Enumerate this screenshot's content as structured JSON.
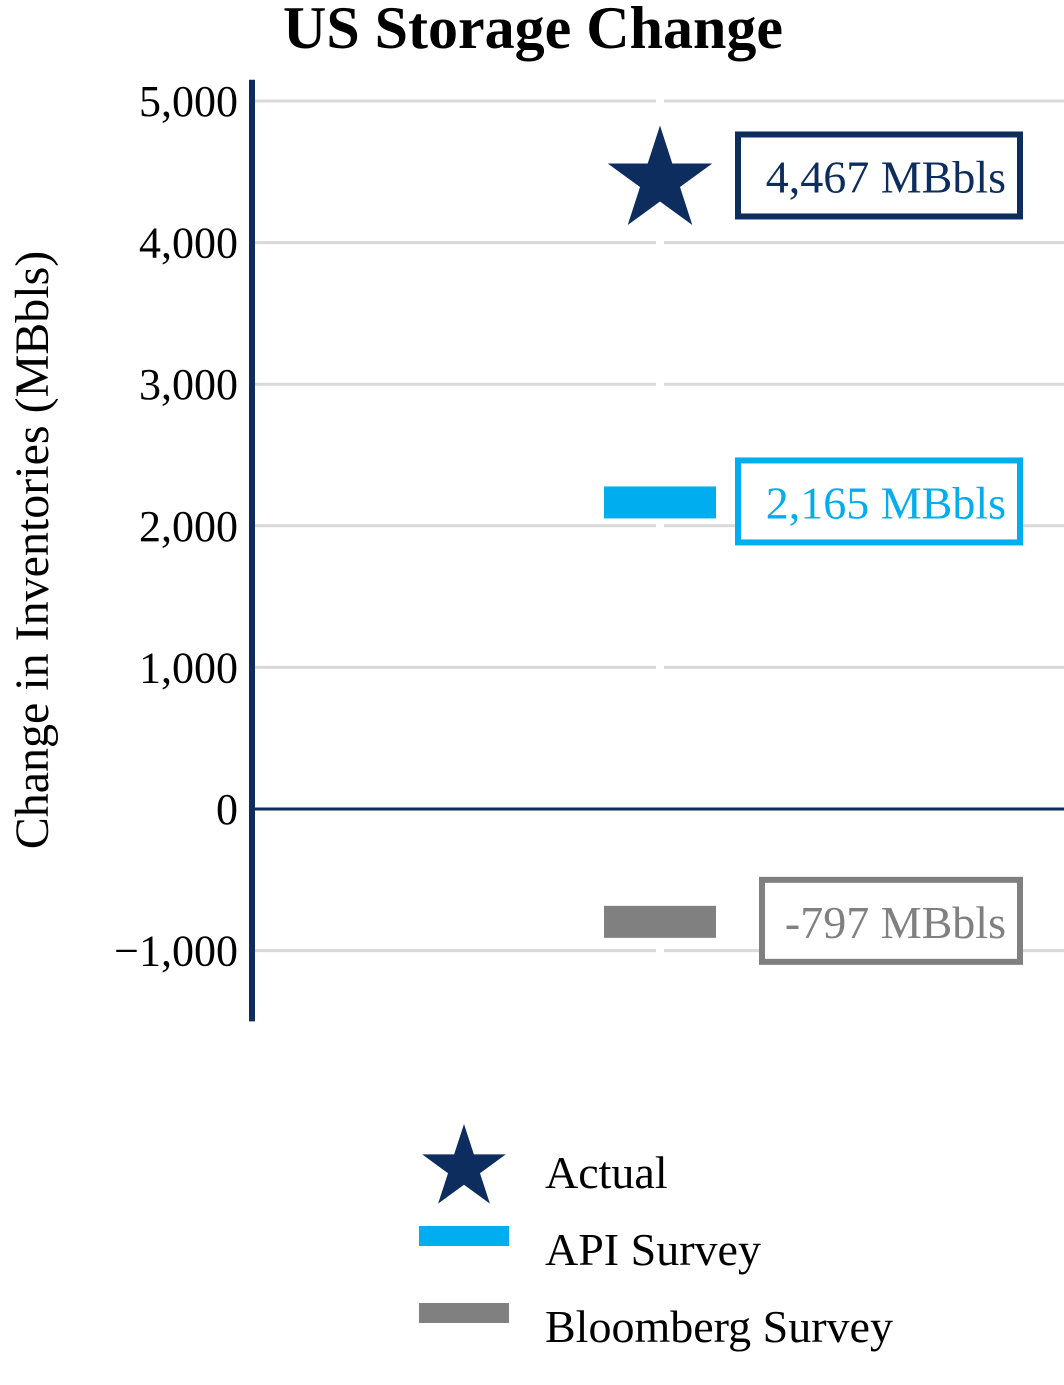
{
  "chart_data": {
    "type": "scatter",
    "title": "US Storage Change",
    "xlabel": "",
    "ylabel": "Change in Inventories (MBbls)",
    "ylim": [
      -1500,
      5150
    ],
    "yticks": [
      5000,
      4000,
      3000,
      2000,
      1000,
      0,
      -1000
    ],
    "ytick_labels": [
      "5,000",
      "4,000",
      "3,000",
      "2,000",
      "1,000",
      "0",
      "−1,000"
    ],
    "grid": true,
    "legend_position": "bottom",
    "series": [
      {
        "name": "Actual",
        "value": 4467,
        "label": "4,467 MBbls",
        "marker": "star",
        "color": "#0d2d5e"
      },
      {
        "name": "API Survey",
        "value": 2165,
        "label": "2,165 MBbls",
        "marker": "dash",
        "color": "#00aeef"
      },
      {
        "name": "Bloomberg Survey",
        "value": -797,
        "label": "-797 MBbls",
        "marker": "dash",
        "color": "#808080"
      }
    ],
    "colors": {
      "axis": "#0d2d5e",
      "grid": "#d9d9d9"
    }
  }
}
